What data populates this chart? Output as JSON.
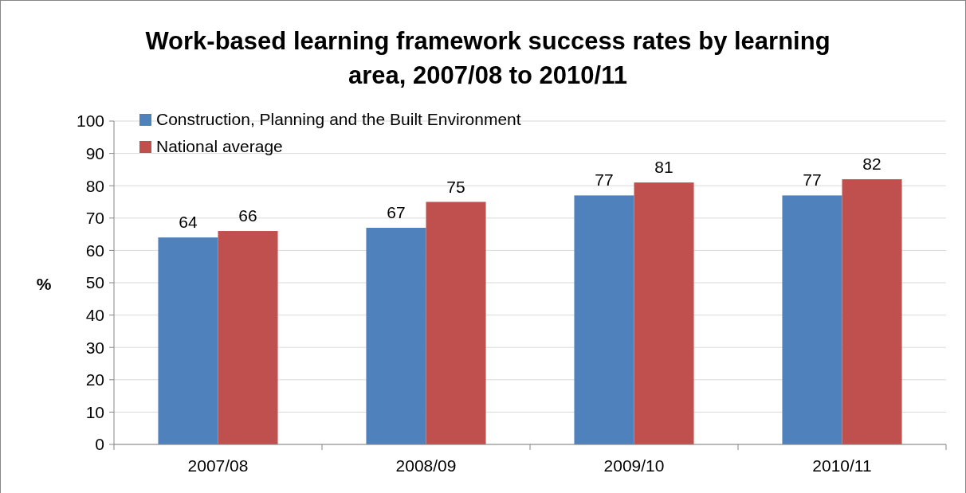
{
  "chart_data": {
    "type": "bar",
    "title": "Work-based learning framework success rates by learning area, 2007/08 to 2010/11",
    "ylabel": "%",
    "categories": [
      "2007/08",
      "2008/09",
      "2009/10",
      "2010/11"
    ],
    "series": [
      {
        "name": "Construction, Planning and the Built Environment",
        "color": "#4f81bd",
        "values": [
          64,
          67,
          77,
          77
        ]
      },
      {
        "name": "National average",
        "color": "#c0504d",
        "values": [
          66,
          75,
          81,
          82
        ]
      }
    ],
    "ylim": [
      0,
      100
    ],
    "yticks": [
      0,
      10,
      20,
      30,
      40,
      50,
      60,
      70,
      80,
      90,
      100
    ],
    "grid": "y",
    "legend": "top left",
    "data_labels": true
  }
}
